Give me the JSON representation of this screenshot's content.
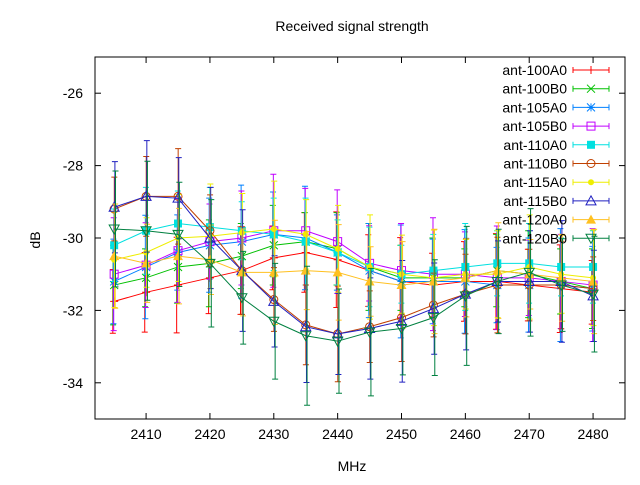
{
  "chart_data": {
    "type": "line",
    "title": "Received signal strength",
    "xlabel": "MHz",
    "ylabel": "dB",
    "xlim": [
      2402,
      2485
    ],
    "ylim": [
      -35,
      -25
    ],
    "xticks": [
      2410,
      2420,
      2430,
      2440,
      2450,
      2460,
      2470,
      2480
    ],
    "yticks": [
      -26,
      -28,
      -30,
      -32,
      -34
    ],
    "legend_position": "top-right",
    "grid": false,
    "x": [
      2405,
      2410,
      2415,
      2420,
      2425,
      2430,
      2435,
      2440,
      2445,
      2450,
      2455,
      2460,
      2465,
      2470,
      2475,
      2480
    ],
    "series": [
      {
        "name": "ant-100A0",
        "color": "#ff0000",
        "marker": "plus",
        "error": 1.1,
        "values": [
          -31.75,
          -31.5,
          -31.3,
          -31.1,
          -30.9,
          -30.55,
          -30.4,
          -30.6,
          -30.9,
          -31.2,
          -31.3,
          -31.2,
          -31.2,
          -31.3,
          -31.4,
          -31.5
        ]
      },
      {
        "name": "ant-100B0",
        "color": "#00c000",
        "marker": "cross",
        "error": 1.0,
        "values": [
          -31.3,
          -31.1,
          -30.8,
          -30.7,
          -30.5,
          -30.2,
          -30.1,
          -30.3,
          -30.8,
          -31.1,
          -31.1,
          -31.1,
          -30.9,
          -31.0,
          -31.2,
          -31.4
        ]
      },
      {
        "name": "ant-105A0",
        "color": "#0080ff",
        "marker": "star",
        "error": 1.3,
        "values": [
          -31.2,
          -30.8,
          -30.4,
          -30.2,
          -30.1,
          -29.9,
          -30.0,
          -30.4,
          -30.9,
          -31.2,
          -31.2,
          -31.2,
          -31.3,
          -31.3,
          -31.3,
          -31.4
        ]
      },
      {
        "name": "ant-105B0",
        "color": "#c000ff",
        "marker": "square",
        "error": 1.3,
        "values": [
          -31.0,
          -30.75,
          -30.35,
          -30.1,
          -30.0,
          -29.8,
          -29.8,
          -30.1,
          -30.7,
          -30.9,
          -31.0,
          -31.0,
          -31.1,
          -31.1,
          -31.2,
          -31.3
        ]
      },
      {
        "name": "ant-110A0",
        "color": "#00e0e0",
        "marker": "filled-square",
        "error": 1.0,
        "values": [
          -30.2,
          -29.8,
          -29.6,
          -29.7,
          -29.8,
          -29.9,
          -30.1,
          -30.4,
          -30.8,
          -31.0,
          -30.9,
          -30.8,
          -30.7,
          -30.7,
          -30.8,
          -30.8
        ]
      },
      {
        "name": "ant-110B0",
        "color": "#c04000",
        "marker": "circle",
        "error": 1.1,
        "values": [
          -29.2,
          -28.85,
          -28.85,
          -29.8,
          -30.9,
          -31.7,
          -32.4,
          -32.65,
          -32.45,
          -32.2,
          -31.85,
          -31.55,
          -31.3,
          -31.3,
          -31.3,
          -31.4
        ]
      },
      {
        "name": "ant-115A0",
        "color": "#eeee00",
        "marker": "filled-circle",
        "error": 1.2,
        "values": [
          -30.6,
          -30.4,
          -30.0,
          -29.95,
          -29.85,
          -29.75,
          -29.9,
          -30.3,
          -30.8,
          -31.0,
          -31.1,
          -31.0,
          -31.0,
          -30.8,
          -31.0,
          -31.1
        ]
      },
      {
        "name": "ant-115B0",
        "color": "#2020c0",
        "marker": "triangle",
        "error": 1.4,
        "values": [
          -29.15,
          -28.85,
          -28.9,
          -30.0,
          -30.9,
          -31.75,
          -32.45,
          -32.65,
          -32.5,
          -32.3,
          -31.95,
          -31.55,
          -31.2,
          -31.2,
          -31.2,
          -31.6
        ]
      },
      {
        "name": "ant-120A0",
        "color": "#ffc020",
        "marker": "filled-triangle",
        "error": 1.2,
        "values": [
          -30.5,
          -30.7,
          -30.5,
          -30.6,
          -30.95,
          -30.95,
          -30.9,
          -30.95,
          -31.2,
          -31.3,
          -31.2,
          -31.1,
          -30.9,
          -31.0,
          -31.1,
          -31.2
        ]
      },
      {
        "name": "ant-120B0",
        "color": "#008040",
        "marker": "inverted-triangle",
        "error": 1.6,
        "values": [
          -29.75,
          -29.8,
          -29.9,
          -30.7,
          -31.65,
          -32.3,
          -32.7,
          -32.85,
          -32.6,
          -32.5,
          -32.2,
          -31.6,
          -31.2,
          -30.95,
          -31.3,
          -31.55
        ]
      }
    ]
  }
}
